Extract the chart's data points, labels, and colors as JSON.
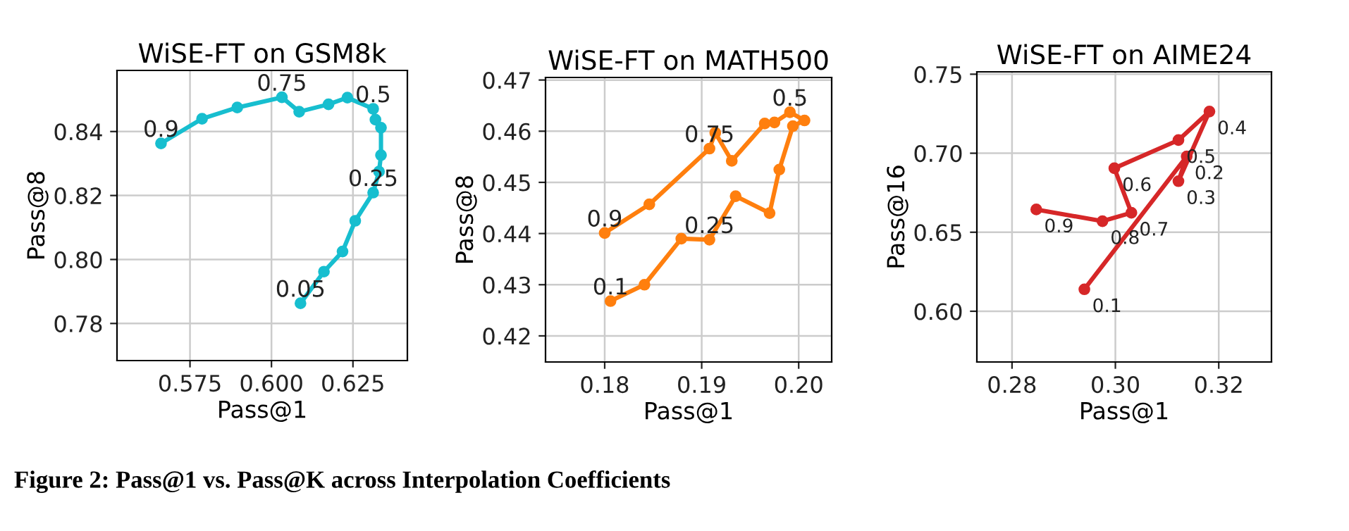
{
  "chart_data": [
    {
      "type": "line",
      "title": "WiSE-FT on GSM8k",
      "xlabel": "Pass@1",
      "ylabel": "Pass@8",
      "marker": "circle",
      "grid": true,
      "xlim": [
        0.5526,
        0.6417
      ],
      "xticks": [
        {
          "value": 0.575,
          "label": "0.575"
        },
        {
          "value": 0.6,
          "label": "0.600"
        },
        {
          "value": 0.625,
          "label": "0.625"
        }
      ],
      "ylim": [
        0.7684,
        0.8591
      ],
      "yticks": [
        {
          "value": 0.78,
          "label": "0.78"
        },
        {
          "value": 0.8,
          "label": "0.80"
        },
        {
          "value": 0.82,
          "label": "0.82"
        },
        {
          "value": 0.84,
          "label": "0.84"
        }
      ],
      "series": [
        {
          "color": "#17becf",
          "x": [
            0.5661,
            0.5787,
            0.5895,
            0.6032,
            0.6085,
            0.6175,
            0.6233,
            0.6312,
            0.6319,
            0.6336,
            0.6336,
            0.633,
            0.6312,
            0.6257,
            0.6218,
            0.6161,
            0.6089
          ],
          "values": [
            0.8363,
            0.844,
            0.8475,
            0.8507,
            0.8462,
            0.8485,
            0.8506,
            0.8471,
            0.8437,
            0.8412,
            0.8326,
            0.8275,
            0.8209,
            0.8121,
            0.8025,
            0.7962,
            0.7863
          ]
        }
      ],
      "annotations": [
        {
          "text": "0.9",
          "x": 0.5661,
          "y": 0.8363
        },
        {
          "text": "0.75",
          "x": 0.6032,
          "y": 0.8507
        },
        {
          "text": "0.5",
          "x": 0.6312,
          "y": 0.8471
        },
        {
          "text": "0.25",
          "x": 0.6312,
          "y": 0.8209
        },
        {
          "text": "0.05",
          "x": 0.6089,
          "y": 0.7863
        }
      ]
    },
    {
      "type": "line",
      "title": "WiSE-FT on MATH500",
      "xlabel": "Pass@1",
      "ylabel": "Pass@8",
      "marker": "circle",
      "grid": true,
      "xlim": [
        0.1739,
        0.2034
      ],
      "xticks": [
        {
          "value": 0.18,
          "label": "0.18"
        },
        {
          "value": 0.19,
          "label": "0.19"
        },
        {
          "value": 0.2,
          "label": "0.20"
        }
      ],
      "ylim": [
        0.4149,
        0.4705
      ],
      "yticks": [
        {
          "value": 0.42,
          "label": "0.42"
        },
        {
          "value": 0.43,
          "label": "0.43"
        },
        {
          "value": 0.44,
          "label": "0.44"
        },
        {
          "value": 0.45,
          "label": "0.45"
        },
        {
          "value": 0.46,
          "label": "0.46"
        },
        {
          "value": 0.47,
          "label": "0.47"
        }
      ],
      "series": [
        {
          "color": "#ff7f0e",
          "x": [
            0.18,
            0.1846,
            0.1908,
            0.1914,
            0.1931,
            0.1965,
            0.1975,
            0.1991,
            0.2006,
            0.1994,
            0.198,
            0.197,
            0.1935,
            0.1908,
            0.1879,
            0.1841,
            0.1806
          ],
          "values": [
            0.4401,
            0.4457,
            0.4566,
            0.4597,
            0.4542,
            0.4615,
            0.4617,
            0.4637,
            0.4621,
            0.461,
            0.4525,
            0.444,
            0.4473,
            0.4388,
            0.439,
            0.43,
            0.4268
          ]
        }
      ],
      "annotations": [
        {
          "text": "0.9",
          "x": 0.18,
          "y": 0.4401
        },
        {
          "text": "0.75",
          "x": 0.1908,
          "y": 0.4566
        },
        {
          "text": "0.5",
          "x": 0.1991,
          "y": 0.4637
        },
        {
          "text": "0.25",
          "x": 0.1908,
          "y": 0.4388
        },
        {
          "text": "0.1",
          "x": 0.1806,
          "y": 0.4268
        }
      ]
    },
    {
      "type": "line",
      "title": "WiSE-FT on AIME24",
      "xlabel": "Pass@1",
      "ylabel": "Pass@16",
      "marker": "circle",
      "grid": true,
      "xlim": [
        0.2732,
        0.3302
      ],
      "xticks": [
        {
          "value": 0.28,
          "label": "0.28"
        },
        {
          "value": 0.3,
          "label": "0.30"
        },
        {
          "value": 0.32,
          "label": "0.32"
        }
      ],
      "ylim": [
        0.5679,
        0.7515
      ],
      "yticks": [
        {
          "value": 0.6,
          "label": "0.60"
        },
        {
          "value": 0.65,
          "label": "0.65"
        },
        {
          "value": 0.7,
          "label": "0.70"
        },
        {
          "value": 0.75,
          "label": "0.75"
        }
      ],
      "series": [
        {
          "color": "#d62728",
          "x": [
            0.2847,
            0.2975,
            0.3031,
            0.2998,
            0.3122,
            0.3182,
            0.3122,
            0.3138,
            0.294
          ],
          "values": [
            0.6644,
            0.657,
            0.6623,
            0.6905,
            0.7083,
            0.7264,
            0.6823,
            0.698,
            0.6139
          ]
        }
      ],
      "annotations": [
        {
          "text": "0.9",
          "x": 0.2847,
          "y": 0.6644
        },
        {
          "text": "0.8",
          "x": 0.2975,
          "y": 0.657
        },
        {
          "text": "0.7",
          "x": 0.3031,
          "y": 0.6623
        },
        {
          "text": "0.6",
          "x": 0.2998,
          "y": 0.6905
        },
        {
          "text": "0.5",
          "x": 0.3122,
          "y": 0.7083
        },
        {
          "text": "0.4",
          "x": 0.3182,
          "y": 0.7264
        },
        {
          "text": "0.3",
          "x": 0.3122,
          "y": 0.6823
        },
        {
          "text": "0.2",
          "x": 0.3138,
          "y": 0.698
        },
        {
          "text": "0.1",
          "x": 0.294,
          "y": 0.6139
        },
        "Figure 2: Pass@1 vs. Pass@K across Interpolation Coefficients"
      ]
    }
  ]
}
